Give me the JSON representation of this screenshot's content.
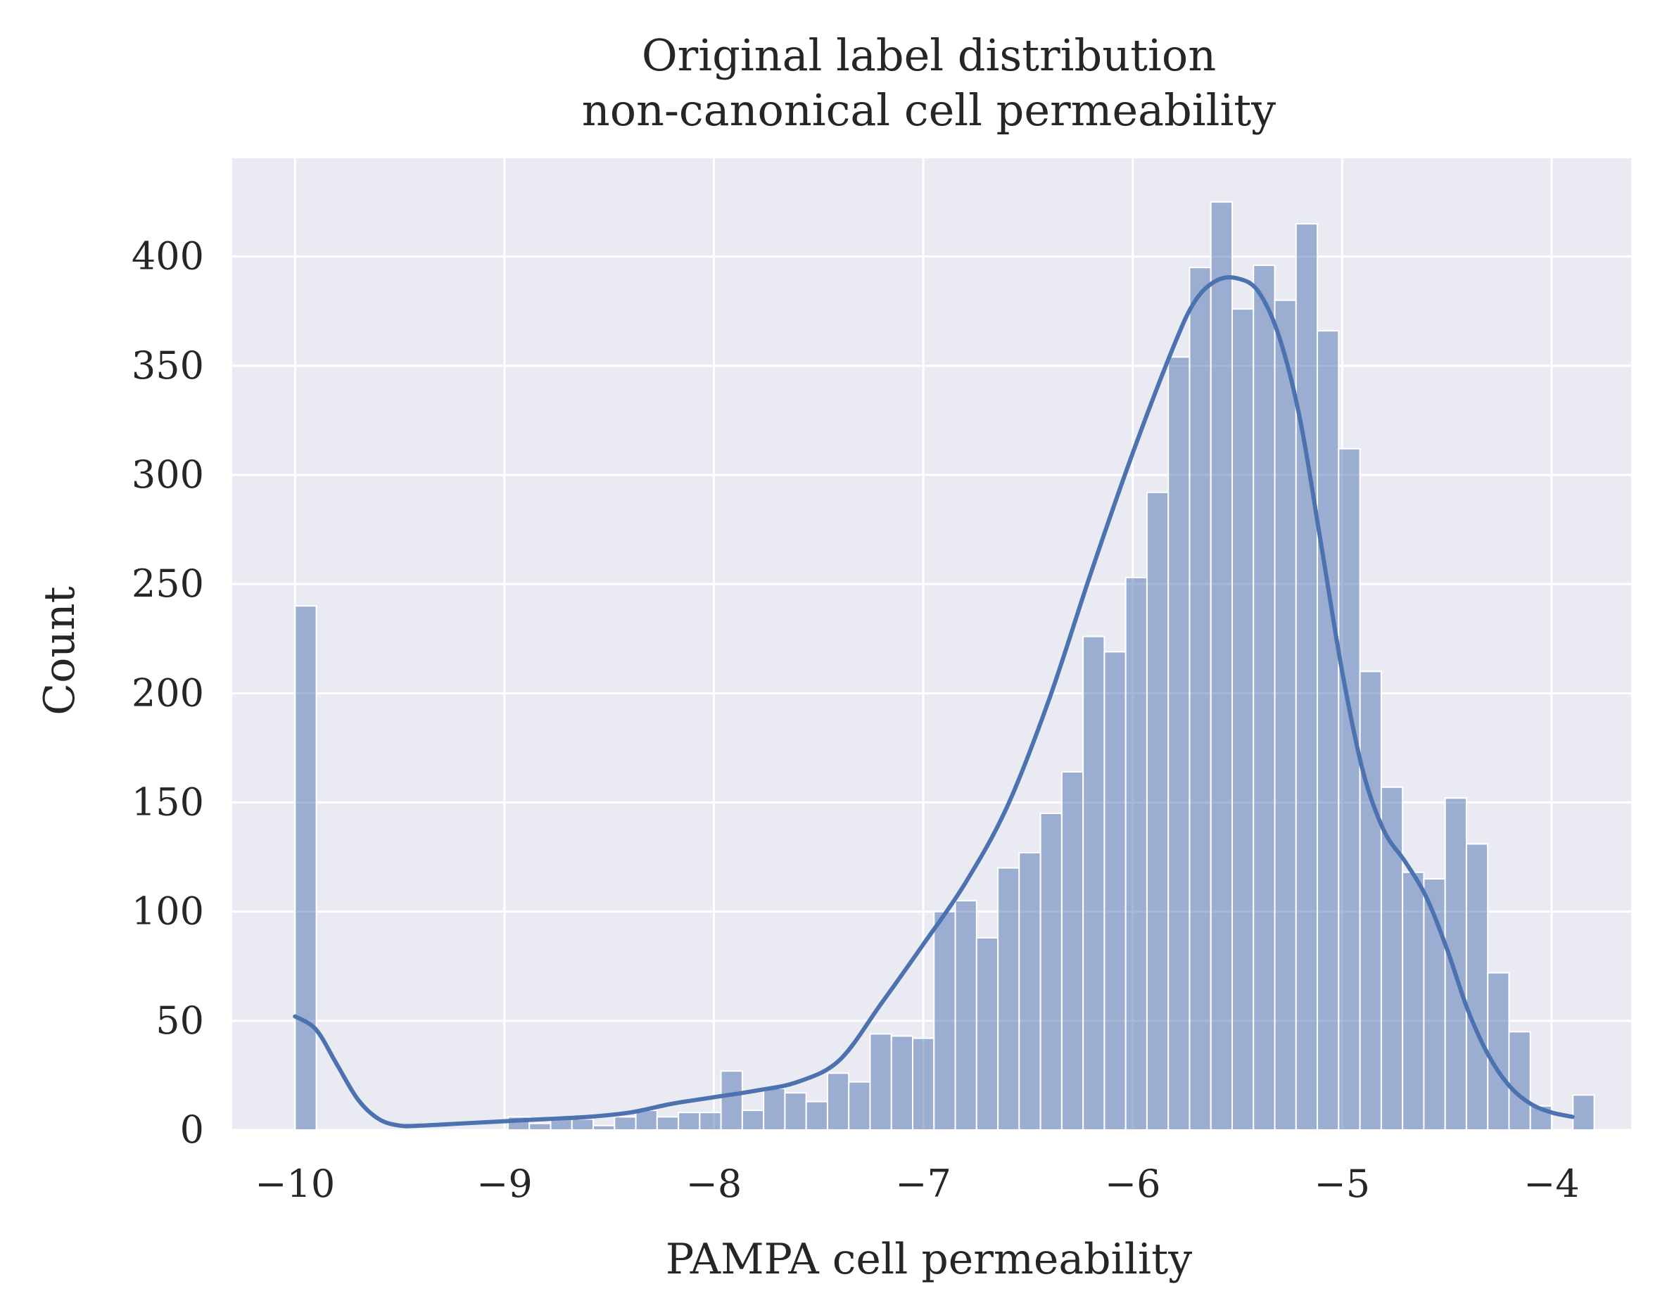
{
  "chart_data": {
    "type": "bar",
    "subtype": "histogram-with-kde",
    "title": "Original label distribution",
    "subtitle": "non-canonical cell permeability",
    "xlabel": "PAMPA cell permeability",
    "ylabel": "Count",
    "xlim": [
      -10.3,
      -3.62
    ],
    "ylim": [
      0,
      445
    ],
    "grid": true,
    "style": {
      "background": "#eaeaf2",
      "grid_color": "#ffffff",
      "bar_color": "#4c72b0",
      "bar_opacity": 0.5,
      "kde_color": "#4c72b0"
    },
    "x_ticks": [
      {
        "value": -10,
        "label": "−10"
      },
      {
        "value": -9,
        "label": "−9"
      },
      {
        "value": -8,
        "label": "−8"
      },
      {
        "value": -7,
        "label": "−7"
      },
      {
        "value": -6,
        "label": "−6"
      },
      {
        "value": -5,
        "label": "−5"
      },
      {
        "value": -4,
        "label": "−4"
      }
    ],
    "y_ticks": [
      {
        "value": 0,
        "label": "0"
      },
      {
        "value": 50,
        "label": "50"
      },
      {
        "value": 100,
        "label": "100"
      },
      {
        "value": 150,
        "label": "150"
      },
      {
        "value": 200,
        "label": "200"
      },
      {
        "value": 250,
        "label": "250"
      },
      {
        "value": 300,
        "label": "300"
      },
      {
        "value": 350,
        "label": "350"
      },
      {
        "value": 400,
        "label": "400"
      }
    ],
    "bin_start": -10.0,
    "bin_width": 0.1017,
    "counts": [
      240,
      0,
      0,
      0,
      0,
      0,
      0,
      0,
      0,
      0,
      6,
      3,
      6,
      5,
      2,
      6,
      9,
      6,
      8,
      8,
      27,
      9,
      19,
      17,
      13,
      26,
      22,
      44,
      43,
      42,
      100,
      105,
      88,
      120,
      127,
      145,
      164,
      226,
      219,
      253,
      292,
      354,
      395,
      425,
      376,
      396,
      380,
      415,
      366,
      312,
      210,
      157,
      118,
      115,
      152,
      131,
      72,
      45,
      11,
      0,
      16
    ],
    "kde": {
      "x": [
        -10.0,
        -9.9,
        -9.8,
        -9.7,
        -9.6,
        -9.5,
        -9.4,
        -9.2,
        -9.0,
        -8.8,
        -8.6,
        -8.4,
        -8.2,
        -8.0,
        -7.8,
        -7.6,
        -7.4,
        -7.2,
        -7.0,
        -6.8,
        -6.6,
        -6.4,
        -6.2,
        -6.0,
        -5.8,
        -5.7,
        -5.6,
        -5.5,
        -5.4,
        -5.3,
        -5.2,
        -5.1,
        -5.0,
        -4.9,
        -4.8,
        -4.7,
        -4.6,
        -4.5,
        -4.4,
        -4.3,
        -4.2,
        -4.1,
        -4.0,
        -3.9
      ],
      "y": [
        52,
        46,
        30,
        14,
        5,
        2,
        2,
        3,
        4,
        5,
        6,
        8,
        12,
        15,
        18,
        22,
        32,
        58,
        85,
        113,
        148,
        197,
        255,
        310,
        360,
        380,
        389,
        390,
        384,
        363,
        325,
        268,
        210,
        164,
        137,
        123,
        107,
        83,
        55,
        34,
        20,
        12,
        8,
        6
      ]
    }
  }
}
